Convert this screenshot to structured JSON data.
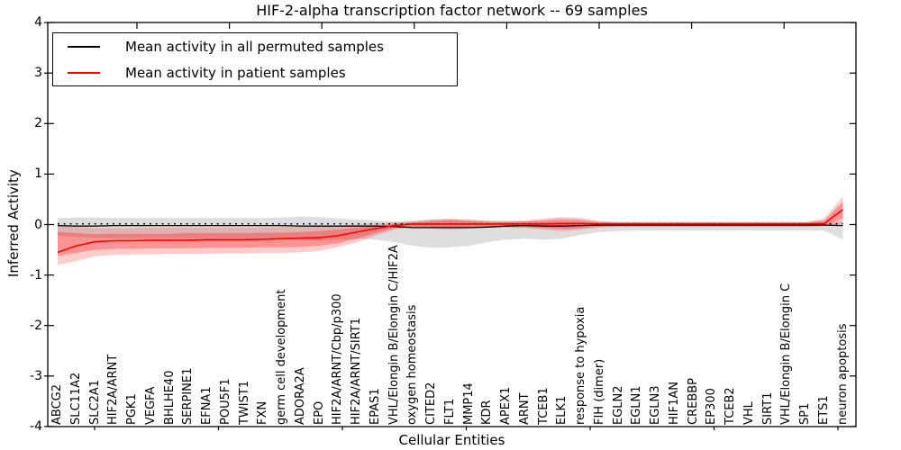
{
  "figure": {
    "title": "HIF-2-alpha transcription factor network -- 69 samples",
    "xlabel": "Cellular Entities",
    "ylabel": "Inferred Activity"
  },
  "legend": {
    "entries": [
      {
        "label": "Mean activity in all permuted samples",
        "color": "#000000"
      },
      {
        "label": "Mean activity in patient samples",
        "color": "#ff0000"
      }
    ]
  },
  "chart_data": {
    "type": "line",
    "title": "HIF-2-alpha transcription factor network -- 69 samples",
    "xlabel": "Cellular Entities",
    "ylabel": "Inferred Activity",
    "ylim": [
      -4,
      4
    ],
    "yticks": [
      "4",
      "3",
      "2",
      "1",
      "0",
      "-1",
      "-2",
      "-3",
      "-4"
    ],
    "ytick_values": [
      4,
      3,
      2,
      1,
      0,
      -1,
      -2,
      -3,
      -4
    ],
    "grid": false,
    "legend_position": "upper left",
    "zero_reference_line": {
      "style": "dotted",
      "color": "#000000",
      "y": 0.015
    },
    "colors": {
      "permuted_line": "#000000",
      "patient_line": "#ff0000",
      "permuted_band": "#888888",
      "patient_band": "#ff0000"
    },
    "x": [
      "ABCG2",
      "SLC11A2",
      "SLC2A1",
      "HIF2A/ARNT",
      "PGK1",
      "VEGFA",
      "BHLHE40",
      "SERPINE1",
      "EFNA1",
      "POU5F1",
      "TWIST1",
      "FXN",
      "germ cell development",
      "ADORA2A",
      "EPO",
      "HIF2A/ARNT/Cbp/p300",
      "HIF2A/ARNT/SIRT1",
      "EPAS1",
      "VHL/Elongin B/Elongin C/HIF2A",
      "oxygen homeostasis",
      "CITED2",
      "FLT1",
      "MMP14",
      "KDR",
      "APEX1",
      "ARNT",
      "TCEB1",
      "ELK1",
      "response to hypoxia",
      "FIH (dimer)",
      "EGLN2",
      "EGLN1",
      "EGLN3",
      "HIF1AN",
      "CREBBP",
      "EP300",
      "TCEB2",
      "VHL",
      "SIRT1",
      "VHL/Elongin B/Elongin C",
      "SP1",
      "ETS1",
      "neuron apoptosis"
    ],
    "series": [
      {
        "name": "Mean activity in all permuted samples",
        "values": [
          -0.02,
          -0.03,
          -0.03,
          -0.02,
          -0.02,
          -0.02,
          -0.02,
          -0.02,
          -0.02,
          -0.02,
          -0.02,
          -0.02,
          -0.02,
          -0.03,
          -0.03,
          -0.03,
          -0.03,
          -0.03,
          -0.04,
          -0.06,
          -0.06,
          -0.06,
          -0.06,
          -0.05,
          -0.03,
          -0.02,
          -0.03,
          -0.03,
          -0.02,
          -0.01,
          -0.01,
          -0.01,
          -0.01,
          -0.01,
          -0.01,
          -0.01,
          -0.01,
          -0.01,
          -0.01,
          -0.01,
          -0.01,
          -0.01,
          -0.02
        ]
      },
      {
        "name": "Mean activity in patient samples",
        "values": [
          -0.55,
          -0.42,
          -0.34,
          -0.32,
          -0.32,
          -0.31,
          -0.31,
          -0.31,
          -0.3,
          -0.3,
          -0.3,
          -0.29,
          -0.28,
          -0.27,
          -0.26,
          -0.22,
          -0.15,
          -0.08,
          -0.02,
          0.01,
          0.01,
          0.01,
          0.01,
          0.01,
          0.01,
          0.01,
          0.01,
          0.02,
          0.02,
          0.01,
          0.01,
          0.01,
          0.01,
          0.01,
          0.01,
          0.01,
          0.01,
          0.01,
          0.01,
          0.01,
          0.01,
          0.02,
          0.3
        ]
      }
    ],
    "bands": {
      "permuted_lo": [
        -0.22,
        -0.25,
        -0.26,
        -0.27,
        -0.27,
        -0.27,
        -0.27,
        -0.27,
        -0.27,
        -0.27,
        -0.27,
        -0.27,
        -0.28,
        -0.3,
        -0.32,
        -0.3,
        -0.28,
        -0.3,
        -0.35,
        -0.42,
        -0.46,
        -0.45,
        -0.42,
        -0.35,
        -0.3,
        -0.28,
        -0.3,
        -0.28,
        -0.2,
        -0.15,
        -0.13,
        -0.12,
        -0.12,
        -0.12,
        -0.12,
        -0.12,
        -0.12,
        -0.12,
        -0.12,
        -0.12,
        -0.12,
        -0.12,
        -0.3
      ],
      "permuted_hi": [
        0.13,
        0.14,
        0.14,
        0.13,
        0.13,
        0.13,
        0.13,
        0.13,
        0.13,
        0.13,
        0.13,
        0.13,
        0.14,
        0.16,
        0.15,
        0.12,
        0.1,
        0.08,
        0.06,
        0.08,
        0.1,
        0.1,
        0.09,
        0.08,
        0.07,
        0.06,
        0.06,
        0.06,
        0.05,
        0.05,
        0.05,
        0.05,
        0.05,
        0.05,
        0.05,
        0.05,
        0.05,
        0.05,
        0.05,
        0.05,
        0.05,
        0.05,
        0.07
      ],
      "patient_outer_lo": [
        -0.8,
        -0.72,
        -0.63,
        -0.6,
        -0.59,
        -0.59,
        -0.58,
        -0.58,
        -0.58,
        -0.57,
        -0.57,
        -0.56,
        -0.56,
        -0.55,
        -0.52,
        -0.45,
        -0.35,
        -0.22,
        -0.1,
        -0.06,
        -0.08,
        -0.1,
        -0.08,
        -0.06,
        -0.06,
        -0.07,
        -0.1,
        -0.13,
        -0.1,
        -0.06,
        -0.05,
        -0.05,
        -0.05,
        -0.05,
        -0.05,
        -0.05,
        -0.05,
        -0.05,
        -0.05,
        -0.05,
        -0.05,
        -0.03,
        0.02
      ],
      "patient_outer_hi": [
        -0.03,
        -0.05,
        -0.07,
        -0.07,
        -0.07,
        -0.06,
        -0.06,
        -0.06,
        -0.06,
        -0.06,
        -0.06,
        -0.06,
        -0.05,
        -0.05,
        -0.04,
        -0.02,
        0.0,
        0.02,
        0.04,
        0.06,
        0.1,
        0.12,
        0.1,
        0.07,
        0.07,
        0.08,
        0.12,
        0.15,
        0.13,
        0.07,
        0.05,
        0.05,
        0.05,
        0.05,
        0.05,
        0.05,
        0.05,
        0.05,
        0.05,
        0.05,
        0.05,
        0.12,
        0.56
      ],
      "patient_inner_lo": [
        -0.62,
        -0.56,
        -0.5,
        -0.48,
        -0.48,
        -0.47,
        -0.47,
        -0.47,
        -0.46,
        -0.46,
        -0.46,
        -0.45,
        -0.45,
        -0.44,
        -0.42,
        -0.37,
        -0.28,
        -0.17,
        -0.07,
        -0.04,
        -0.05,
        -0.07,
        -0.05,
        -0.04,
        -0.04,
        -0.05,
        -0.07,
        -0.09,
        -0.07,
        -0.04,
        -0.03,
        -0.03,
        -0.03,
        -0.03,
        -0.03,
        -0.03,
        -0.03,
        -0.03,
        -0.03,
        -0.03,
        -0.03,
        -0.02,
        0.12
      ],
      "patient_inner_hi": [
        -0.15,
        -0.17,
        -0.19,
        -0.18,
        -0.18,
        -0.18,
        -0.18,
        -0.17,
        -0.17,
        -0.17,
        -0.17,
        -0.16,
        -0.16,
        -0.15,
        -0.13,
        -0.1,
        -0.06,
        -0.03,
        0.02,
        0.04,
        0.07,
        0.09,
        0.07,
        0.05,
        0.05,
        0.06,
        0.09,
        0.11,
        0.1,
        0.05,
        0.04,
        0.04,
        0.04,
        0.04,
        0.04,
        0.04,
        0.04,
        0.04,
        0.04,
        0.04,
        0.04,
        0.08,
        0.45
      ]
    }
  }
}
